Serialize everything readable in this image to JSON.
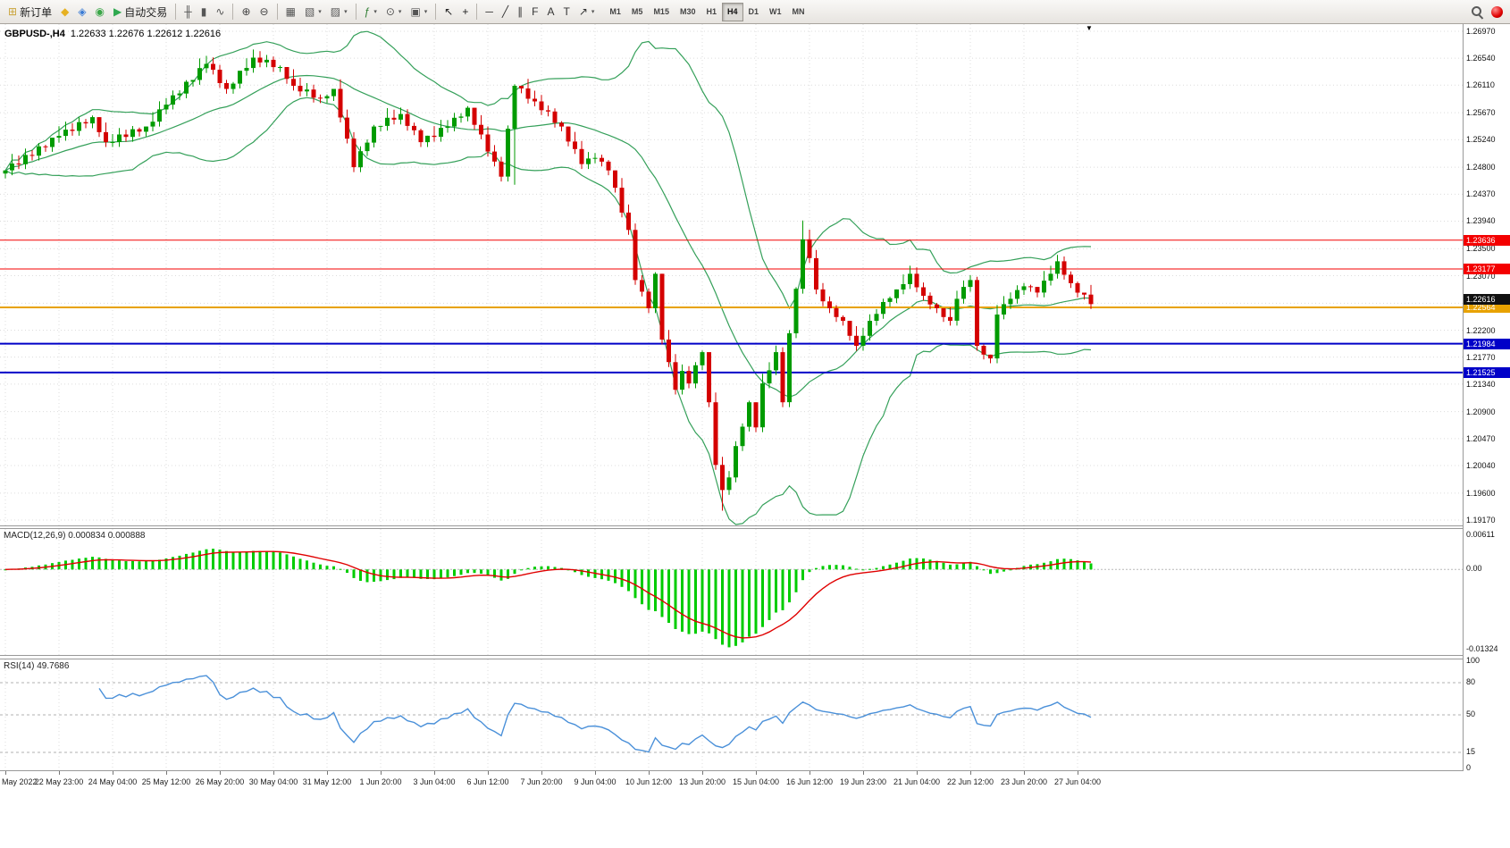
{
  "colors": {
    "bull": "#009b00",
    "bear": "#d40000",
    "bollinger": "#35a05a",
    "macd_hist": "#00cc00",
    "macd_signal": "#e00000",
    "rsi_line": "#4a90d9",
    "hline_red": "#f40000",
    "hline_orange": "#e8a200",
    "hline_blue": "#0000c8",
    "grid": "#dcdcdc",
    "panel_border": "#999999"
  },
  "toolbar": {
    "items": [
      {
        "name": "new-order-button",
        "glyph": "⊞",
        "color": "#caa53d",
        "label": "新订单"
      },
      {
        "name": "market-watch-button",
        "glyph": "◆",
        "color": "#e6b123"
      },
      {
        "name": "data-window-button",
        "glyph": "◈",
        "color": "#3a7bd5"
      },
      {
        "name": "navigator-button",
        "glyph": "◉",
        "color": "#3aa648"
      },
      {
        "name": "autotrading-button",
        "glyph": "▶",
        "color": "#2fa84f",
        "label": "自动交易"
      },
      {
        "sep": true
      },
      {
        "name": "ohlc-bars-button",
        "glyph": "╫",
        "color": "#555555"
      },
      {
        "name": "candlestick-button",
        "glyph": "▮",
        "color": "#555555"
      },
      {
        "name": "line-chart-button",
        "glyph": "∿",
        "color": "#555555"
      },
      {
        "sep": true
      },
      {
        "name": "zoom-in-button",
        "glyph": "⊕",
        "color": "#444444"
      },
      {
        "name": "zoom-out-button",
        "glyph": "⊖",
        "color": "#444444"
      },
      {
        "sep": true
      },
      {
        "name": "tile-windows-button",
        "glyph": "▦",
        "color": "#555555"
      },
      {
        "name": "cascade-windows-button",
        "glyph": "▧",
        "color": "#555555",
        "dd": true
      },
      {
        "name": "arrange-windows-button",
        "glyph": "▨",
        "color": "#555555",
        "dd": true
      },
      {
        "sep": true
      },
      {
        "name": "indicators-button",
        "glyph": "ƒ",
        "color": "#2f7d32",
        "dd": true
      },
      {
        "name": "periods-button",
        "glyph": "⊙",
        "color": "#555555",
        "dd": true
      },
      {
        "name": "templates-button",
        "glyph": "▣",
        "color": "#555555",
        "dd": true
      },
      {
        "sep": true
      },
      {
        "name": "cursor-button",
        "glyph": "↖",
        "color": "#222222"
      },
      {
        "name": "crosshair-button",
        "glyph": "+",
        "color": "#222222"
      },
      {
        "sep": true
      },
      {
        "name": "horizontal-line-button",
        "glyph": "─",
        "color": "#333333"
      },
      {
        "name": "trendline-button",
        "glyph": "╱",
        "color": "#333333"
      },
      {
        "name": "equidistant-channel-button",
        "glyph": "∥",
        "color": "#333333"
      },
      {
        "name": "fibonacci-button",
        "glyph": "F",
        "color": "#333333"
      },
      {
        "name": "text-button",
        "glyph": "A",
        "color": "#333333"
      },
      {
        "name": "text-label-button",
        "glyph": "T",
        "color": "#333333"
      },
      {
        "name": "arrows-button",
        "glyph": "↗",
        "color": "#333333",
        "dd": true
      }
    ],
    "timeframes": [
      "M1",
      "M5",
      "M15",
      "M30",
      "H1",
      "H4",
      "D1",
      "W1",
      "MN"
    ],
    "active_timeframe": "H4"
  },
  "chart": {
    "symbol_title": "GBPUSD-,H4",
    "ohlc": "1.22633 1.22676 1.22612 1.22616",
    "shift_marker": "▼",
    "price_axis_labels": [
      "1.26970",
      "1.26540",
      "1.26110",
      "1.25670",
      "1.25240",
      "1.24800",
      "1.24370",
      "1.23940",
      "1.23500",
      "1.23070",
      "1.22630",
      "1.22200",
      "1.21770",
      "1.21340",
      "1.20900",
      "1.20470",
      "1.20040",
      "1.19600",
      "1.19170"
    ],
    "hlines": [
      {
        "price": 1.23636,
        "label": "1.23636",
        "color_key": "hline_red",
        "width": 1
      },
      {
        "price": 1.23177,
        "label": "1.23177",
        "color_key": "hline_red",
        "width": 1
      },
      {
        "price": 1.22564,
        "label": "1.22564",
        "color_key": "hline_orange",
        "width": 2
      },
      {
        "price": 1.21984,
        "label": "1.21984",
        "color_key": "hline_blue",
        "width": 2
      },
      {
        "price": 1.21525,
        "label": "1.21525",
        "color_key": "hline_blue",
        "width": 2
      }
    ],
    "current_price_label": {
      "price": 1.22616,
      "label": "1.22616",
      "bg": "#111111"
    }
  },
  "chart_data": {
    "type": "candlestick",
    "symbol": "GBPUSD-",
    "timeframe": "H4",
    "y_min": 1.1917,
    "y_max": 1.2697,
    "open_first": 1.247,
    "closes": [
      1.2475,
      1.24859,
      1.24848,
      1.24996,
      1.24985,
      1.25134,
      1.25123,
      1.25271,
      1.253,
      1.254,
      1.2538,
      1.2552,
      1.255,
      1.256,
      1.2536,
      1.252,
      1.25202,
      1.25323,
      1.25285,
      1.25407,
      1.25368,
      1.2545,
      1.25527,
      1.25723,
      1.258,
      1.25948,
      1.25977,
      1.26165,
      1.26193,
      1.26382,
      1.2645,
      1.26357,
      1.26143,
      1.2605,
      1.26135,
      1.2634,
      1.26385,
      1.2655,
      1.26473,
      1.26515,
      1.26398,
      1.264,
      1.2621,
      1.261,
      1.2601,
      1.2604,
      1.2591,
      1.259,
      1.25935,
      1.2605,
      1.25593,
      1.25257,
      1.248,
      1.25057,
      1.25193,
      1.2545,
      1.2546,
      1.2559,
      1.2556,
      1.2565,
      1.2546,
      1.2539,
      1.252,
      1.25303,
      1.25285,
      1.25428,
      1.2545,
      1.2559,
      1.2561,
      1.2575,
      1.25477,
      1.25323,
      1.2505,
      1.2489,
      1.2465,
      1.25415,
      1.261,
      1.26057,
      1.25893,
      1.2585,
      1.2571,
      1.2569,
      1.2551,
      1.2545,
      1.2521,
      1.2509,
      1.2485,
      1.2494,
      1.2495,
      1.2489,
      1.2475,
      1.24473,
      1.24077,
      1.238,
      1.23,
      1.22815,
      1.2255,
      1.231,
      1.2205,
      1.2169,
      1.2125,
      1.2155,
      1.2135,
      1.2164,
      1.2185,
      1.2105,
      1.2005,
      1.1965,
      1.1985,
      1.2035,
      1.2066,
      1.2105,
      1.2065,
      1.2135,
      1.2156,
      1.2185,
      1.2105,
      1.2215,
      1.2286,
      1.2365,
      1.2335,
      1.2285,
      1.2266,
      1.2255,
      1.2241,
      1.2235,
      1.2211,
      1.2195,
      1.2211,
      1.2235,
      1.2246,
      1.2265,
      1.2271,
      1.2285,
      1.22935,
      1.231,
      1.22885,
      1.2275,
      1.2261,
      1.2255,
      1.2241,
      1.2235,
      1.227,
      1.2289,
      1.23,
      1.2195,
      1.2181,
      1.2175,
      1.2245,
      1.22615,
      1.227,
      1.2284,
      1.229,
      1.2289,
      1.228,
      1.2299,
      1.231,
      1.233,
      1.23085,
      1.2295,
      1.22799,
      1.22767,
      1.22616
    ],
    "wick_overrides": {
      "76": {
        "low": 1.2452
      },
      "107": {
        "low": 1.1932
      },
      "119": {
        "high": 1.2395
      }
    },
    "indicators": {
      "bollinger": "Bollinger Bands (20,2)",
      "macd": "MACD(12,26,9)",
      "rsi": "RSI(14)"
    }
  },
  "macd_panel": {
    "title": "MACD(12,26,9) 0.000834 0.000888",
    "axis_top": "0.00611",
    "axis_zero": "0.00",
    "axis_bottom": "-0.01324",
    "y_max": 0.00611,
    "y_min": -0.01324
  },
  "rsi_panel": {
    "title": "RSI(14) 49.7686",
    "axis_labels": [
      {
        "v": 100,
        "t": "100"
      },
      {
        "v": 80,
        "t": "80"
      },
      {
        "v": 50,
        "t": "50"
      },
      {
        "v": 15,
        "t": "15"
      },
      {
        "v": 0,
        "t": "0"
      }
    ],
    "levels": [
      80,
      50,
      15
    ]
  },
  "time_axis": {
    "labels": [
      "May 2022",
      "22 May 23:00",
      "24 May 04:00",
      "25 May 12:00",
      "26 May 20:00",
      "30 May 04:00",
      "31 May 12:00",
      "1 Jun 20:00",
      "3 Jun 04:00",
      "6 Jun 12:00",
      "7 Jun 20:00",
      "9 Jun 04:00",
      "10 Jun 12:00",
      "13 Jun 20:00",
      "15 Jun 04:00",
      "16 Jun 12:00",
      "19 Jun 23:00",
      "21 Jun 04:00",
      "22 Jun 12:00",
      "23 Jun 20:00",
      "27 Jun 04:00"
    ]
  }
}
